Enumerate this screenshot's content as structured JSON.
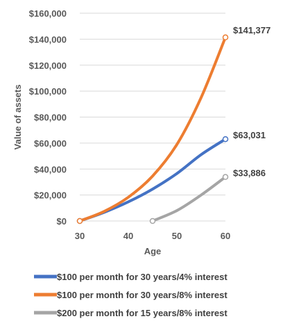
{
  "chart_data": {
    "type": "line",
    "xlabel": "Age",
    "ylabel": "Value of assets",
    "xlim": [
      30,
      60
    ],
    "ylim": [
      0,
      160000
    ],
    "x_ticks": [
      "30",
      "40",
      "50",
      "60"
    ],
    "y_ticks": [
      "$0",
      "$20,000",
      "$40,000",
      "$60,000",
      "$80,000",
      "$100,000",
      "$120,000",
      "$140,000",
      "$160,000"
    ],
    "grid": "horizontal",
    "legend_position": "bottom",
    "series": [
      {
        "name": "$100 per month for 30 years/4% interest",
        "color": "#4472C4",
        "end_label": "$63,031",
        "x": [
          30,
          35,
          40,
          45,
          50,
          55,
          60
        ],
        "y": [
          0,
          6630,
          14725,
          24550,
          36550,
          51120,
          63031
        ]
      },
      {
        "name": "$100 per month for 30 years/8% interest",
        "color": "#ED7D31",
        "end_label": "$141,377",
        "x": [
          30,
          35,
          40,
          45,
          50,
          55,
          60
        ],
        "y": [
          0,
          7348,
          18295,
          34604,
          58902,
          95103,
          141377
        ]
      },
      {
        "name": "$200 per month for 15 years/8% interest",
        "color": "#A5A5A5",
        "end_label": "$33,886",
        "x": [
          45,
          50,
          55,
          60
        ],
        "y": [
          0,
          8000,
          20000,
          33886
        ]
      }
    ]
  }
}
